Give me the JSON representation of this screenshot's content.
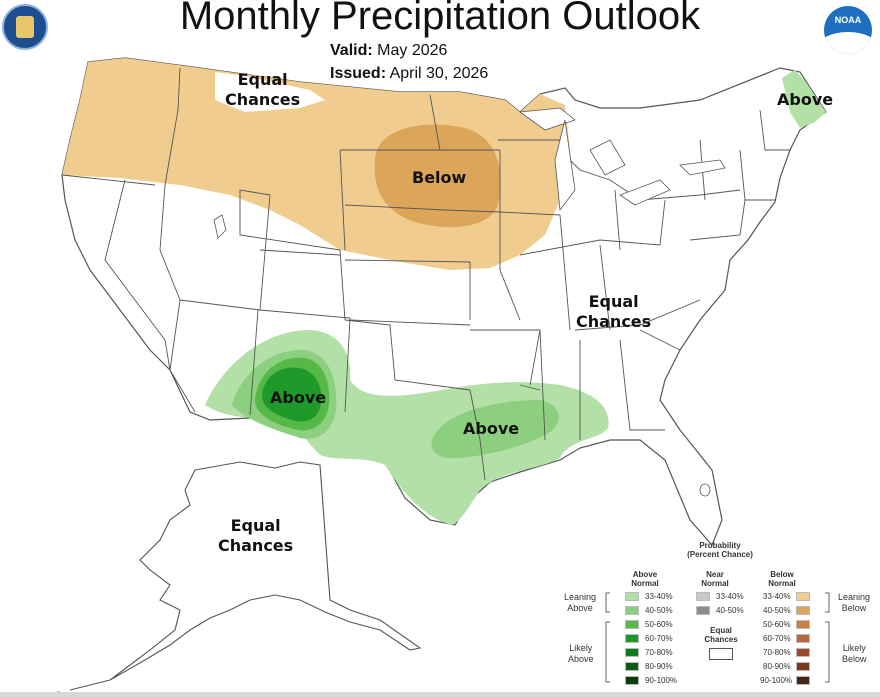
{
  "title": "Monthly Precipitation Outlook",
  "valid_label": "Valid:",
  "valid_value": "May 2026",
  "issued_label": "Issued:",
  "issued_value": "April 30, 2026",
  "noaa_logo_text": "NOAA",
  "map_labels": {
    "ec_northwest": [
      "Equal",
      "Chances"
    ],
    "below": "Below",
    "above_northeast": "Above",
    "ec_east": [
      "Equal",
      "Chances"
    ],
    "above_southwest": "Above",
    "above_gulf": "Above",
    "ec_alaska": [
      "Equal",
      "Chances"
    ]
  },
  "colors": {
    "leaning_below": "#f0cd8f",
    "below_40_50": "#dba65a",
    "above_33_40": "#b3e0a6",
    "above_40_50": "#8ccf7e",
    "above_50_60": "#55b847",
    "above_60_70": "#1f9a2a",
    "above_70_80": "#0e7a1c",
    "above_80_90": "#0a5a16",
    "above_90_100": "#093c0c",
    "near_33_40": "#c8c8c8",
    "near_40_50": "#8c8c8c",
    "below_50_60": "#c88046",
    "below_60_70": "#b8683e",
    "below_70_80": "#9a4a2e",
    "below_80_90": "#7a3a1e",
    "below_90_100": "#4a2412"
  },
  "legend": {
    "title_line1": "Probability",
    "title_line2": "(Percent Chance)",
    "above_head": [
      "Above",
      "Normal"
    ],
    "near_head": [
      "Near",
      "Normal"
    ],
    "below_head": [
      "Below",
      "Normal"
    ],
    "leaning_above": [
      "Leaning",
      "Above"
    ],
    "likely_above": [
      "Likely",
      "Above"
    ],
    "leaning_below": [
      "Leaning",
      "Below"
    ],
    "likely_below": [
      "Likely",
      "Below"
    ],
    "equal_chances": [
      "Equal",
      "Chances"
    ],
    "above_ranges": [
      "33-40%",
      "40-50%",
      "50-60%",
      "60-70%",
      "70-80%",
      "80-90%",
      "90-100%"
    ],
    "near_ranges": [
      "33-40%",
      "40-50%"
    ],
    "below_ranges": [
      "33-40%",
      "40-50%",
      "50-60%",
      "60-70%",
      "70-80%",
      "80-90%",
      "90-100%"
    ]
  }
}
